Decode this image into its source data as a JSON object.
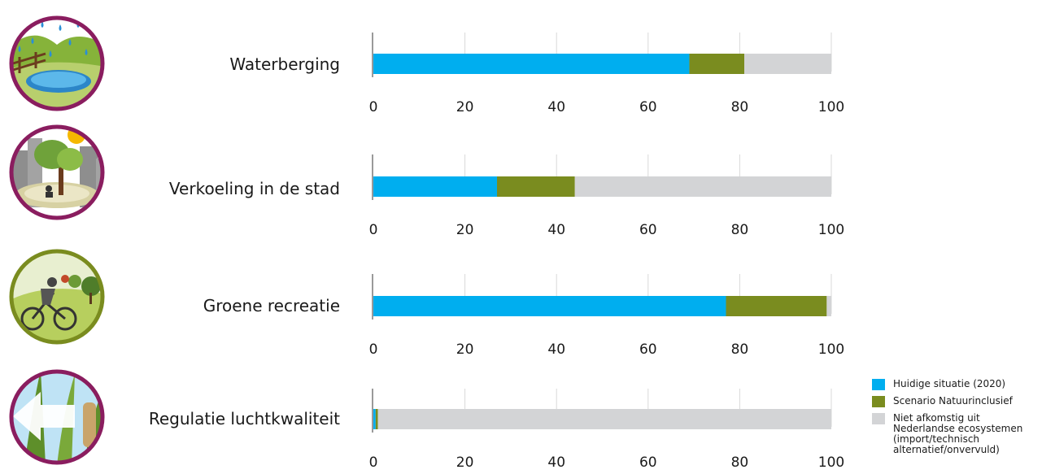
{
  "chart_data": {
    "type": "bar",
    "stacked": true,
    "orientation": "horizontal",
    "categories": [
      "Waterberging",
      "Verkoeling in de stad",
      "Groene recreatie",
      "Regulatie luchtkwaliteit"
    ],
    "series": [
      {
        "name": "Huidige situatie (2020)",
        "values": [
          69,
          27,
          77,
          0.5
        ]
      },
      {
        "name": "Scenario Natuurinclusief",
        "values": [
          12,
          17,
          22,
          0.5
        ]
      },
      {
        "name": "Niet afkomstig uit\nNederlandse ecosystemen\n(import/technisch\n alternatief/onvervuld)",
        "values": [
          19,
          56,
          1,
          99
        ]
      }
    ],
    "xlim": [
      0,
      100
    ],
    "xticks": [
      0,
      20,
      40,
      60,
      80,
      100
    ],
    "xtick_labels": [
      "0",
      "20",
      "40",
      "60",
      "80",
      "100"
    ],
    "grid": true,
    "legend_position": "bottom-right"
  },
  "colors": {
    "huidige": "#00aeef",
    "scenario": "#7a8c1f",
    "niet": "#d3d4d6",
    "axis": "#9a9a9a",
    "grid": "#d9d9d9"
  },
  "icons": [
    {
      "name": "waterberging-icon",
      "ring": "#8a1d5f"
    },
    {
      "name": "verkoeling-icon",
      "ring": "#8a1d5f"
    },
    {
      "name": "recreatie-icon",
      "ring": "#7a8c1f"
    },
    {
      "name": "luchtkwaliteit-icon",
      "ring": "#8a1d5f"
    }
  ]
}
